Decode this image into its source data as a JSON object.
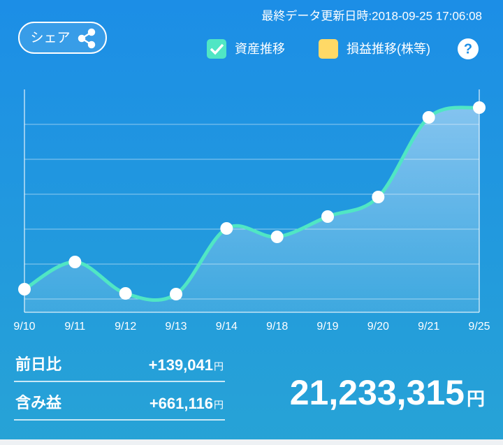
{
  "header": {
    "updated": "最終データ更新日時:2018-09-25 17:06:08",
    "share": "シェア"
  },
  "chart_data": {
    "type": "line",
    "categories": [
      "9/10",
      "9/11",
      "9/12",
      "9/13",
      "9/14",
      "9/18",
      "9/19",
      "9/20",
      "9/21",
      "9/25"
    ],
    "series": [
      {
        "name": "資産推移",
        "color": "#50e6c4",
        "values": [
          0.28,
          1.06,
          0.16,
          0.14,
          2.02,
          1.78,
          2.36,
          2.92,
          5.2,
          5.48
        ]
      }
    ],
    "legend_options": [
      {
        "name": "損益推移(株等)",
        "color": "#ffd966"
      }
    ],
    "ylim": [
      -0.38,
      6
    ],
    "yticks": [
      0,
      1,
      2,
      3,
      4,
      5
    ],
    "grid": true
  },
  "summary": {
    "rows": [
      {
        "label": "前日比",
        "value": "+139,041",
        "unit": "円"
      },
      {
        "label": "含み益",
        "value": "+661,116",
        "unit": "円"
      }
    ],
    "total": "21,233,315",
    "total_unit": "円"
  }
}
